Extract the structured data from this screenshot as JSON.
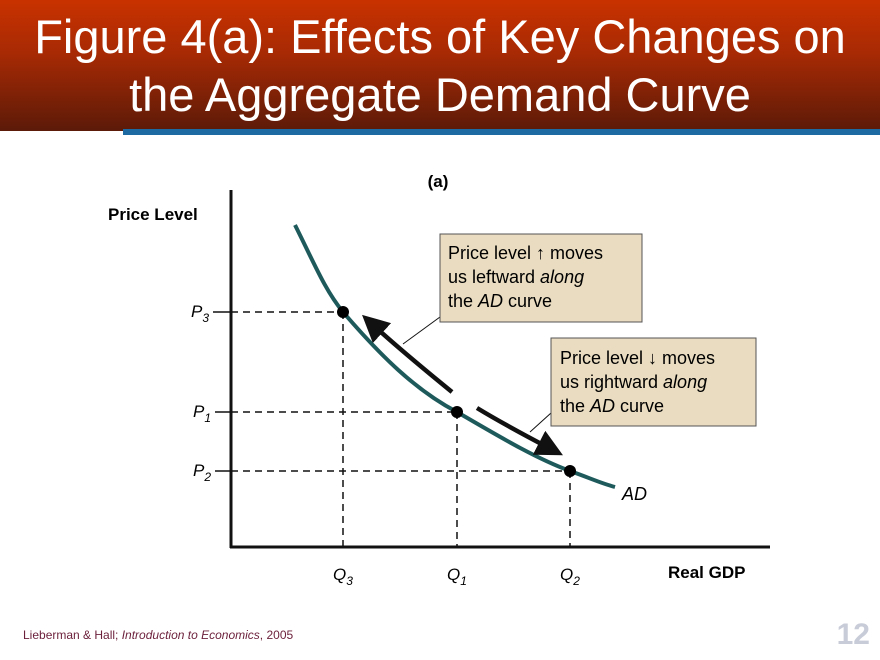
{
  "slide": {
    "title_line1": "Figure 4(a):  Effects of Key Changes on",
    "title_line2": "the Aggregate Demand Curve",
    "footer_authors": "Lieberman & Hall; ",
    "footer_book": "Introduction to Economics",
    "footer_year": ", 2005",
    "page_number": "12"
  },
  "diagram": {
    "panel_label": "(a)",
    "y_axis_label": "Price Level",
    "x_axis_label": "Real GDP",
    "curve_label": "AD",
    "y_ticks": [
      {
        "main": "P",
        "sub": "3"
      },
      {
        "main": "P",
        "sub": "1"
      },
      {
        "main": "P",
        "sub": "2"
      }
    ],
    "x_ticks": [
      {
        "main": "Q",
        "sub": "3"
      },
      {
        "main": "Q",
        "sub": "1"
      },
      {
        "main": "Q",
        "sub": "2"
      }
    ],
    "callout_up": {
      "line1": "Price level ↑ moves",
      "line2a": "us leftward ",
      "line2b": "along",
      "line3a": "the ",
      "line3b": "AD",
      "line3c": " curve"
    },
    "callout_down": {
      "line1": "Price level ↓ moves",
      "line2a": "us rightward ",
      "line2b": "along",
      "line3a": "the ",
      "line3b": "AD",
      "line3c": " curve"
    },
    "colors": {
      "curve": "#1e5a5c",
      "callout_fill": "#e9dcc0",
      "header": "#b02c04",
      "accent_bar": "#1d6aa2"
    }
  }
}
